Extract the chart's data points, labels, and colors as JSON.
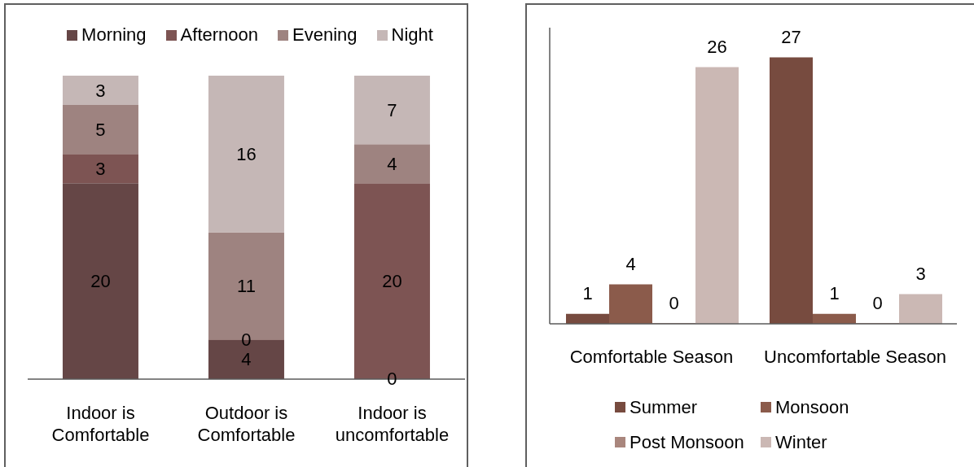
{
  "chart_data": [
    {
      "type": "bar",
      "stacked": true,
      "categories": [
        "Indoor is Comfortable",
        "Outdoor is Comfortable",
        "Indoor is uncomfortable"
      ],
      "series": [
        {
          "name": "Morning",
          "color": "#654646",
          "values": [
            20,
            4,
            0
          ]
        },
        {
          "name": "Afternoon",
          "color": "#7d5453",
          "values": [
            3,
            0,
            20
          ]
        },
        {
          "name": "Evening",
          "color": "#9e8380",
          "values": [
            5,
            11,
            4
          ]
        },
        {
          "name": "Night",
          "color": "#c5b7b6",
          "values": [
            3,
            16,
            7
          ]
        }
      ],
      "data_labels": true,
      "legend": "top",
      "tick_labels": "x"
    },
    {
      "type": "bar",
      "categories": [
        "Comfortable Season",
        "Uncomfortable Season"
      ],
      "series": [
        {
          "name": "Summer",
          "color": "#774b3f",
          "values": [
            1,
            27
          ]
        },
        {
          "name": "Monsoon",
          "color": "#8b5b4b",
          "values": [
            4,
            1
          ]
        },
        {
          "name": "Post Monsoon",
          "color": "#a9867d",
          "values": [
            0,
            0
          ]
        },
        {
          "name": "Winter",
          "color": "#cbb8b4",
          "values": [
            26,
            3
          ]
        }
      ],
      "data_labels": true,
      "legend": "bottom",
      "tick_labels": "x"
    }
  ]
}
